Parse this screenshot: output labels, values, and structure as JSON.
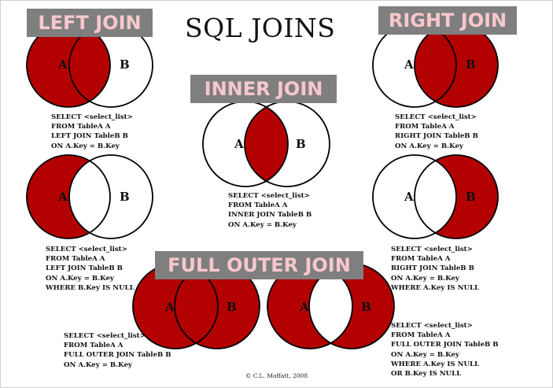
{
  "title": "SQL JOINS",
  "colors": {
    "fill": "#b30000",
    "label_bg": "#7f7f7f",
    "label_text": "#f8c7cc"
  },
  "labels": {
    "left_join": "LEFT JOIN",
    "right_join": "RIGHT JOIN",
    "inner_join": "INNER JOIN",
    "full_outer_join": "FULL OUTER JOIN"
  },
  "set_a": "A",
  "set_b": "B",
  "queries": {
    "left_join": "SELECT <select_list>\nFROM TableA A\nLEFT JOIN TableB B\nON A.Key = B.Key",
    "right_join": "SELECT <select_list>\nFROM TableA A\nRIGHT JOIN TableB B\nON A.Key = B.Key",
    "inner_join": "SELECT <select_list>\nFROM TableA A\nINNER JOIN TableB B\nON A.Key = B.Key",
    "left_join_null": "SELECT <select_list>\nFROM TableA A\nLEFT JOIN TableB B\nON A.Key = B.Key\nWHERE B.Key IS NULL",
    "right_join_null": "SELECT <select_list>\nFROM TableA A\nRIGHT JOIN TableB B\nON A.Key = B.Key\nWHERE A.Key IS NULL",
    "full_outer_join": "SELECT <select_list>\nFROM TableA A\nFULL OUTER JOIN TableB B\nON A.Key = B.Key",
    "full_outer_join_null": "SELECT <select_list>\nFROM TableA A\nFULL OUTER JOIN TableB B\nON A.Key = B.Key\nWHERE A.Key IS NULL\nOR B.Key IS NULL"
  },
  "copyright": "© C.L. Moffatt, 2008",
  "diagrams": [
    {
      "id": "left-join",
      "shade": "a"
    },
    {
      "id": "right-join",
      "shade": "b"
    },
    {
      "id": "inner-join",
      "shade": "ab"
    },
    {
      "id": "left-join-null",
      "shade": "a-only"
    },
    {
      "id": "right-join-null",
      "shade": "b-only"
    },
    {
      "id": "full-outer-join",
      "shade": "all"
    },
    {
      "id": "full-outer-join-null",
      "shade": "xor"
    }
  ]
}
